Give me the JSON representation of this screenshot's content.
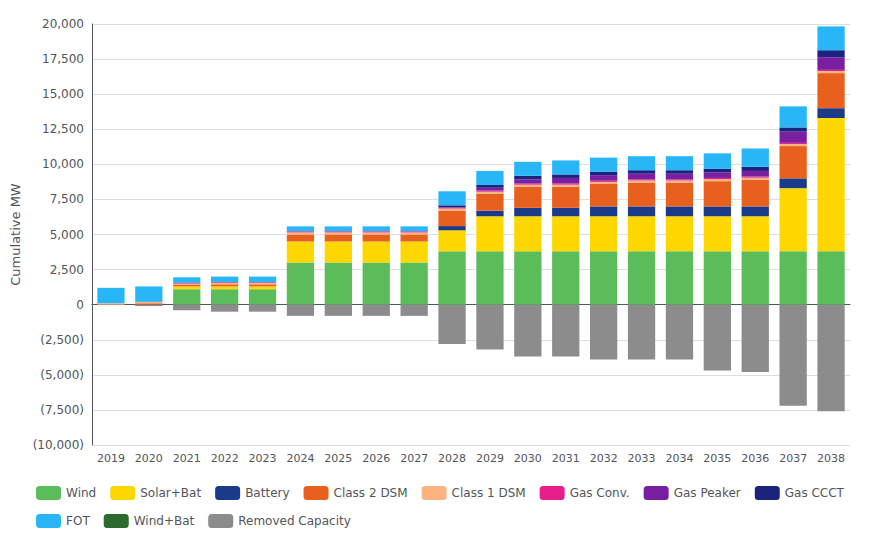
{
  "chart_data": {
    "type": "bar",
    "stacked": true,
    "grid": true,
    "legend": "bottom",
    "ylabel": "Cumulative MW",
    "categories": [
      "2019",
      "2020",
      "2021",
      "2022",
      "2023",
      "2024",
      "2025",
      "2026",
      "2027",
      "2028",
      "2029",
      "2030",
      "2031",
      "2032",
      "2033",
      "2034",
      "2035",
      "2036",
      "2037",
      "2038"
    ],
    "series": [
      {
        "name": "Wind",
        "color": "#5BBD5A",
        "values": [
          0,
          0,
          1100,
          1100,
          1100,
          3000,
          3000,
          3000,
          3000,
          3800,
          3800,
          3800,
          3800,
          3800,
          3800,
          3800,
          3800,
          3800,
          3800,
          3800
        ]
      },
      {
        "name": "Solar+Bat",
        "color": "#FFD700",
        "values": [
          0,
          0,
          200,
          200,
          200,
          1500,
          1500,
          1500,
          1500,
          1500,
          2500,
          2500,
          2500,
          2500,
          2500,
          2500,
          2500,
          2500,
          4500,
          9500
        ]
      },
      {
        "name": "Battery",
        "color": "#1A3A8A",
        "values": [
          0,
          0,
          0,
          0,
          0,
          0,
          0,
          0,
          0,
          300,
          400,
          600,
          600,
          700,
          700,
          700,
          700,
          700,
          700,
          700
        ]
      },
      {
        "name": "Class 2 DSM",
        "color": "#E8601E",
        "values": [
          0,
          100,
          100,
          150,
          150,
          500,
          500,
          500,
          500,
          1100,
          1200,
          1500,
          1500,
          1600,
          1700,
          1700,
          1800,
          1900,
          2300,
          2500
        ]
      },
      {
        "name": "Class 1 DSM",
        "color": "#FFB380",
        "values": [
          100,
          100,
          100,
          100,
          100,
          150,
          150,
          150,
          150,
          150,
          150,
          150,
          150,
          150,
          150,
          150,
          150,
          150,
          150,
          150
        ]
      },
      {
        "name": "Gas Conv.",
        "color": "#E81E8C",
        "values": [
          0,
          0,
          50,
          50,
          50,
          80,
          80,
          80,
          80,
          80,
          80,
          80,
          80,
          80,
          80,
          80,
          80,
          80,
          80,
          80
        ]
      },
      {
        "name": "Gas Peaker",
        "color": "#7B1FA2",
        "values": [
          0,
          0,
          0,
          0,
          0,
          0,
          0,
          0,
          0,
          0,
          200,
          300,
          400,
          400,
          400,
          400,
          400,
          400,
          800,
          900
        ]
      },
      {
        "name": "Gas CCCT",
        "color": "#1A237E",
        "values": [
          0,
          0,
          0,
          0,
          0,
          0,
          0,
          0,
          0,
          150,
          200,
          250,
          250,
          250,
          250,
          250,
          250,
          300,
          300,
          500
        ]
      },
      {
        "name": "FOT",
        "color": "#29B6F6",
        "values": [
          1100,
          1100,
          400,
          400,
          400,
          350,
          350,
          350,
          350,
          1000,
          1000,
          1000,
          1000,
          1000,
          1000,
          1000,
          1100,
          1300,
          1500,
          1700
        ]
      },
      {
        "name": "Wind+Bat",
        "color": "#2D6A2D",
        "values": [
          0,
          0,
          0,
          0,
          0,
          0,
          0,
          0,
          0,
          0,
          0,
          0,
          0,
          0,
          0,
          0,
          0,
          0,
          0,
          0
        ]
      },
      {
        "name": "Removed Capacity",
        "color": "#8C8C8C",
        "values": [
          0,
          -100,
          -400,
          -500,
          -500,
          -800,
          -800,
          -800,
          -800,
          -2800,
          -3200,
          -3700,
          -3700,
          -3900,
          -3900,
          -3900,
          -4700,
          -4800,
          -7200,
          -7600
        ]
      }
    ],
    "ylim": [
      -10000,
      20000
    ],
    "yticks": [
      {
        "value": -10000,
        "label": "(10,000)"
      },
      {
        "value": -7500,
        "label": "(7,500)"
      },
      {
        "value": -5000,
        "label": "(5,000)"
      },
      {
        "value": -2500,
        "label": "(2,500)"
      },
      0,
      {
        "value": 2500,
        "label": "2,500"
      },
      {
        "value": 5000,
        "label": "5,000"
      },
      {
        "value": 7500,
        "label": "7,500"
      },
      {
        "value": 10000,
        "label": "10,000"
      },
      {
        "value": 12500,
        "label": "12,500"
      },
      {
        "value": 15000,
        "label": "15,000"
      },
      {
        "value": 17500,
        "label": "17,500"
      },
      {
        "value": 20000,
        "label": "20,000"
      }
    ]
  }
}
